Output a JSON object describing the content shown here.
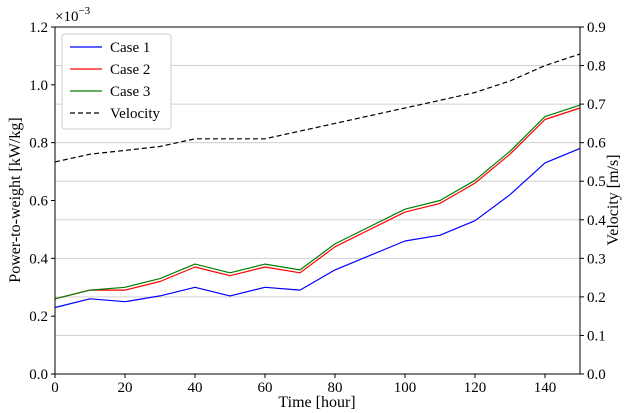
{
  "chart_data": {
    "type": "line",
    "title": "",
    "xlabel": "Time [hour]",
    "ylabel_left": "Power-to-weight [kW/kg]",
    "ylabel_right": "Velocity [m/s]",
    "left_axis_multiplier": "×10",
    "left_axis_exponent": "−3",
    "xlim": [
      0,
      150
    ],
    "ylim_left": [
      0.0,
      1.2
    ],
    "ylim_right": [
      0.0,
      0.9
    ],
    "x_ticks": [
      0,
      20,
      40,
      60,
      80,
      100,
      120,
      140
    ],
    "x_tick_labels": [
      "0",
      "20",
      "40",
      "60",
      "80",
      "100",
      "120",
      "140"
    ],
    "y_left_ticks": [
      0.0,
      0.2,
      0.4,
      0.6,
      0.8,
      1.0,
      1.2
    ],
    "y_left_tick_labels": [
      "0.0",
      "0.2",
      "0.4",
      "0.6",
      "0.8",
      "1.0",
      "1.2"
    ],
    "y_right_ticks": [
      0.0,
      0.1,
      0.2,
      0.3,
      0.4,
      0.5,
      0.6,
      0.7,
      0.8,
      0.9
    ],
    "y_right_tick_labels": [
      "0.0",
      "0.1",
      "0.2",
      "0.3",
      "0.4",
      "0.5",
      "0.6",
      "0.7",
      "0.8",
      "0.9"
    ],
    "grid": "horizontal",
    "legend_position": "top-left",
    "x": [
      0,
      10,
      20,
      30,
      40,
      50,
      60,
      70,
      80,
      90,
      100,
      110,
      120,
      130,
      140,
      150
    ],
    "series": [
      {
        "name": "Case 1",
        "axis": "left",
        "color": "#0000ff",
        "dash": "solid",
        "values": [
          0.23,
          0.26,
          0.25,
          0.27,
          0.3,
          0.27,
          0.3,
          0.29,
          0.36,
          0.41,
          0.46,
          0.48,
          0.53,
          0.62,
          0.73,
          0.78
        ]
      },
      {
        "name": "Case 2",
        "axis": "left",
        "color": "#ff0000",
        "dash": "solid",
        "values": [
          0.26,
          0.29,
          0.29,
          0.32,
          0.37,
          0.34,
          0.37,
          0.35,
          0.44,
          0.5,
          0.56,
          0.59,
          0.66,
          0.76,
          0.88,
          0.92
        ]
      },
      {
        "name": "Case 3",
        "axis": "left",
        "color": "#008000",
        "dash": "solid",
        "values": [
          0.26,
          0.29,
          0.3,
          0.33,
          0.38,
          0.35,
          0.38,
          0.36,
          0.45,
          0.51,
          0.57,
          0.6,
          0.67,
          0.77,
          0.89,
          0.93
        ]
      },
      {
        "name": "Velocity",
        "axis": "right",
        "color": "#000000",
        "dash": "dashed",
        "values": [
          0.55,
          0.57,
          0.58,
          0.59,
          0.61,
          0.61,
          0.61,
          0.63,
          0.65,
          0.67,
          0.69,
          0.71,
          0.73,
          0.76,
          0.8,
          0.83
        ]
      }
    ]
  }
}
